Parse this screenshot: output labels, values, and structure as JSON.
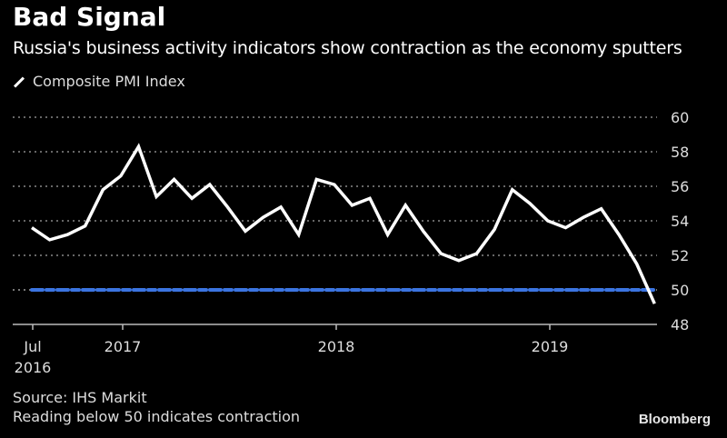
{
  "header": {
    "title": "Bad Signal",
    "subtitle": "Russia's business activity indicators show contraction as the economy sputters"
  },
  "legend": {
    "label": "Composite PMI Index",
    "icon": "line-swatch-icon"
  },
  "footer": {
    "source": "Source: IHS Markit",
    "note": "Reading below 50 indicates contraction",
    "brand": "Bloomberg"
  },
  "colors": {
    "background": "#000000",
    "series": "#ffffff",
    "reference": "#3b74e0",
    "grid": "#888888"
  },
  "chart_data": {
    "type": "line",
    "title": "Bad Signal",
    "subtitle": "Russia's business activity indicators show contraction as the economy sputters",
    "xlabel": "",
    "ylabel": "",
    "ylim": [
      48,
      60
    ],
    "yticks": [
      60,
      58,
      56,
      54,
      52,
      50,
      48
    ],
    "grid": true,
    "legend_position": "top-left",
    "x_tick_labels": [
      {
        "month_index": 0,
        "lines": [
          "Jul",
          "2016"
        ]
      },
      {
        "month_index": 5,
        "lines": [
          "2017"
        ]
      },
      {
        "month_index": 17,
        "lines": [
          "2018"
        ]
      },
      {
        "month_index": 29,
        "lines": [
          "2019"
        ]
      }
    ],
    "reference_line": {
      "value": 50,
      "style": "dashed"
    },
    "series": [
      {
        "name": "Composite PMI Index",
        "x_start": "2016-07",
        "frequency": "monthly",
        "values": [
          53.6,
          52.9,
          53.2,
          53.7,
          55.8,
          56.6,
          58.3,
          55.4,
          56.4,
          55.3,
          56.1,
          54.8,
          53.4,
          54.2,
          54.8,
          53.2,
          56.4,
          56.1,
          54.9,
          55.3,
          53.2,
          54.9,
          53.4,
          52.1,
          51.7,
          52.1,
          53.5,
          55.8,
          55.0,
          54.0,
          53.6,
          54.2,
          54.7,
          53.2,
          51.5,
          49.2
        ]
      }
    ]
  }
}
